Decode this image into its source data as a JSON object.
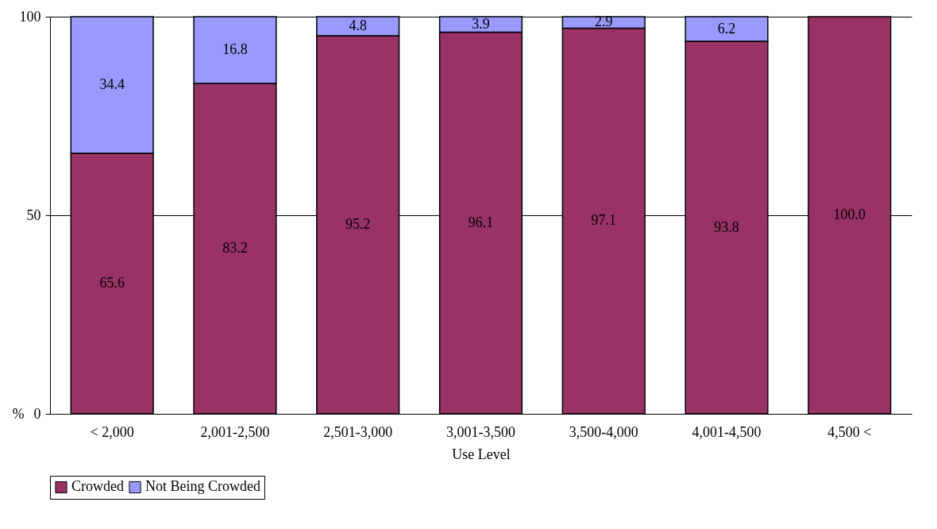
{
  "chart_data": {
    "type": "bar",
    "stacked": true,
    "xlabel": "Use Level",
    "ylabel": "%",
    "categories": [
      "< 2,000",
      "2,001-2,500",
      "2,501-3,000",
      "3,001-3,500",
      "3,500-4,000",
      "4,001-4,500",
      "4,500 <"
    ],
    "series": [
      {
        "name": "Crowded",
        "color": "#993366",
        "values": [
          65.6,
          83.2,
          95.2,
          96.1,
          97.1,
          93.8,
          100.0
        ],
        "value_labels": [
          "65.6",
          "83.2",
          "95.2",
          "96.1",
          "97.1",
          "93.8",
          "100.0"
        ]
      },
      {
        "name": "Not Being Crowded",
        "color": "#9999ff",
        "values": [
          34.4,
          16.8,
          4.8,
          3.9,
          2.9,
          6.2,
          0
        ],
        "value_labels": [
          "34.4",
          "16.8",
          "4.8",
          "3.9",
          "2.9",
          "6.2",
          null
        ]
      }
    ],
    "ylim": [
      0,
      100
    ],
    "yticks": [
      0,
      50,
      100
    ],
    "grid": "y",
    "legend": "bottom"
  }
}
